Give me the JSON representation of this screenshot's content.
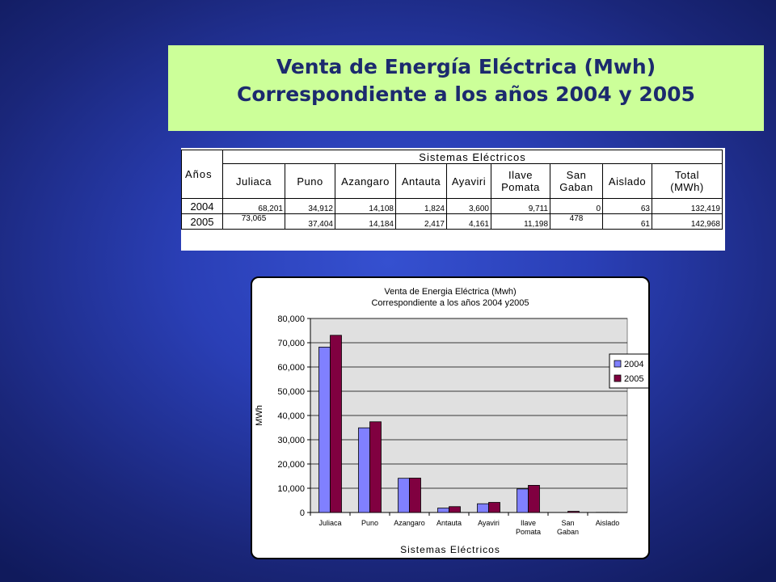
{
  "slide": {
    "title_line1": "Venta de Energía Eléctrica (Mwh)",
    "title_line2": "Correspondiente a los años 2004 y 2005"
  },
  "table": {
    "years_header": "Años",
    "group_header": "Sistemas Eléctricos",
    "columns": [
      "Juliaca",
      "Puno",
      "Azangaro",
      "Antauta",
      "Ayaviri",
      "Ilave\nPomata",
      "San\nGaban",
      "Aislado",
      "Total\n(MWh)"
    ],
    "rows": [
      {
        "year": "2004",
        "values": [
          "68,201",
          "34,912",
          "14,108",
          "1,824",
          "3,600",
          "9,711",
          "0",
          "63",
          "132,419"
        ]
      },
      {
        "year": "2005",
        "values": [
          "73,065",
          "37,404",
          "14,184",
          "2,417",
          "4,161",
          "11,198",
          "478",
          "61",
          "142,968"
        ]
      }
    ]
  },
  "chart_data": {
    "type": "bar",
    "title": "Venta de Energia Eléctrica (Mwh)",
    "subtitle": "Correspondiente a los años 2004 y2005",
    "xlabel": "Sistemas Eléctricos",
    "ylabel": "MWh",
    "categories": [
      "Juliaca",
      "Puno",
      "Azangaro",
      "Antauta",
      "Ayaviri",
      "Ilave Pomata",
      "San Gaban",
      "Aislado"
    ],
    "y_ticks": [
      "0",
      "10,000",
      "20,000",
      "30,000",
      "40,000",
      "50,000",
      "60,000",
      "70,000",
      "80,000"
    ],
    "ylim": [
      0,
      80000
    ],
    "grid": true,
    "legend": "right",
    "series": [
      {
        "name": "2004",
        "color": "#8080ff",
        "values": [
          68201,
          34912,
          14108,
          1824,
          3600,
          9711,
          0,
          63
        ]
      },
      {
        "name": "2005",
        "color": "#800040",
        "values": [
          73065,
          37404,
          14184,
          2417,
          4161,
          11198,
          478,
          61
        ]
      }
    ]
  }
}
